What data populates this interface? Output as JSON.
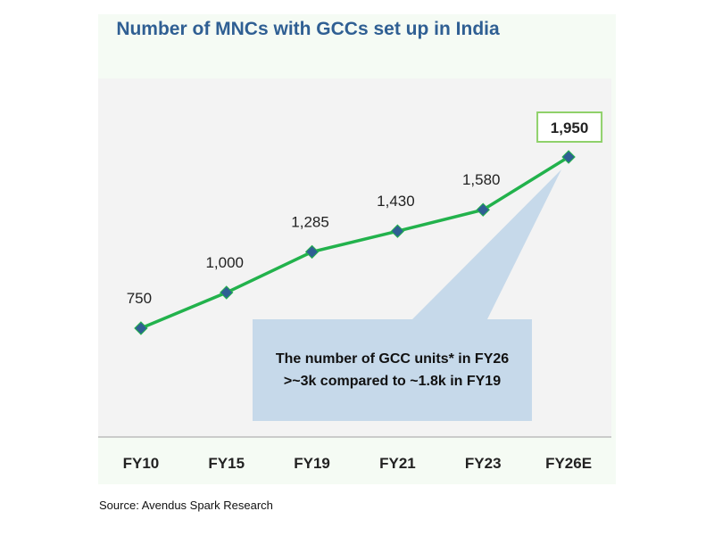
{
  "chart_data": {
    "type": "line",
    "title": "Number of MNCs with GCCs set up in India",
    "categories": [
      "FY10",
      "FY15",
      "FY19",
      "FY21",
      "FY23",
      "FY26E"
    ],
    "series": [
      {
        "values": [
          750,
          1000,
          1285,
          1430,
          1580,
          1950
        ],
        "data_labels": [
          "750",
          "1,000",
          "1,285",
          "1,430",
          "1,580",
          "1,950"
        ]
      }
    ],
    "ylim": [
      0,
      2500
    ],
    "grid": false,
    "highlighted_label": "1,950",
    "annotation": "The number of GCC units* in FY26 >~3k compared to ~1.8k in FY19",
    "colors": {
      "line": "#22b24c",
      "marker": "#2f5f93",
      "title": "#2f5f93",
      "callout": "#c6d9ea",
      "highlight_border": "#8fd16a",
      "plot_bg": "#f3f3f3",
      "panel_bg": "#f5fbf4"
    }
  },
  "source": "Source: Avendus Spark Research"
}
